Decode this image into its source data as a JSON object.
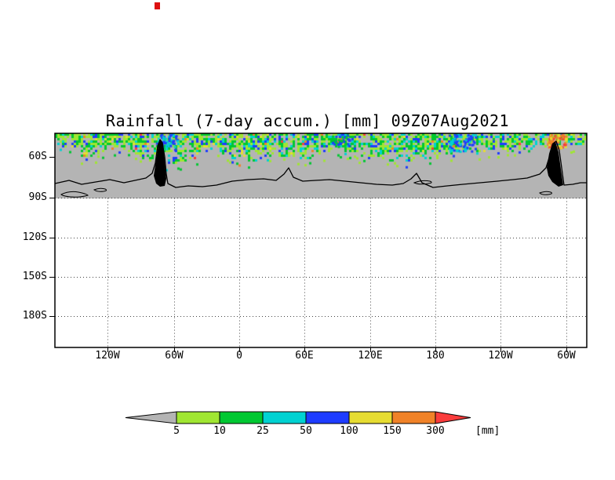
{
  "decorations": {
    "top_mark_color": "#dd1010"
  },
  "chart_data": {
    "type": "heatmap",
    "title": "Rainfall (7-day accum.) [mm] 09Z07Aug2021",
    "x_tick_labels": [
      "120W",
      "60W",
      "0",
      "60E",
      "120E",
      "180",
      "120W",
      "60W"
    ],
    "y_tick_labels": [
      "60S",
      "90S",
      "120S",
      "150S",
      "180S"
    ],
    "grid": "dotted",
    "legend": {
      "tick_labels": [
        "5",
        "10",
        "25",
        "50",
        "100",
        "150",
        "300"
      ],
      "unit_label": "[mm]",
      "color_scale": [
        "#b4b4b4",
        "#a0e632",
        "#00c832",
        "#00d2d2",
        "#1e3cff",
        "#e6dc32",
        "#f08228",
        "#fa3c3c"
      ],
      "bins_mm": [
        "<5",
        "5-10",
        "10-25",
        "25-50",
        "50-100",
        "100-150",
        "150-300",
        ">300"
      ]
    },
    "map": {
      "background_gray": "#b4b4b4",
      "coastline_color": "#000000",
      "description": "7-day accumulated rainfall band over the Southern Ocean between ~60S and ~75S: mostly 5-50 mm (light green / green / cyan), scattered 50-100 mm patches (blue), isolated 150-300+ mm spots (orange/red) near 60W; gray = below 5 mm; Antarctic coastline drawn in black; area south of 90S blank.",
      "field_seed": 42,
      "band_color_weights": [
        {
          "color": "#b4b4b4",
          "w": 0.16
        },
        {
          "color": "#a0e632",
          "w": 0.3
        },
        {
          "color": "#00c832",
          "w": 0.27
        },
        {
          "color": "#00d2d2",
          "w": 0.12
        },
        {
          "color": "#1e3cff",
          "w": 0.1
        },
        {
          "color": "#e6dc32",
          "w": 0.03
        },
        {
          "color": "#f08228",
          "w": 0.015
        },
        {
          "color": "#fa3c3c",
          "w": 0.005
        }
      ],
      "hotspots": [
        {
          "x": 0.925,
          "w": 0.035,
          "d": 18,
          "n": 70,
          "colors": [
            "#f08228",
            "#fa3c3c",
            "#e6dc32"
          ]
        },
        {
          "x": 0.74,
          "w": 0.05,
          "d": 22,
          "n": 80,
          "colors": [
            "#1e3cff",
            "#00d2d2"
          ]
        },
        {
          "x": 0.19,
          "w": 0.04,
          "d": 20,
          "n": 55,
          "colors": [
            "#1e3cff",
            "#00d2d2"
          ]
        },
        {
          "x": 0.52,
          "w": 0.04,
          "d": 16,
          "n": 45,
          "colors": [
            "#1e3cff",
            "#00c832"
          ]
        }
      ]
    }
  }
}
